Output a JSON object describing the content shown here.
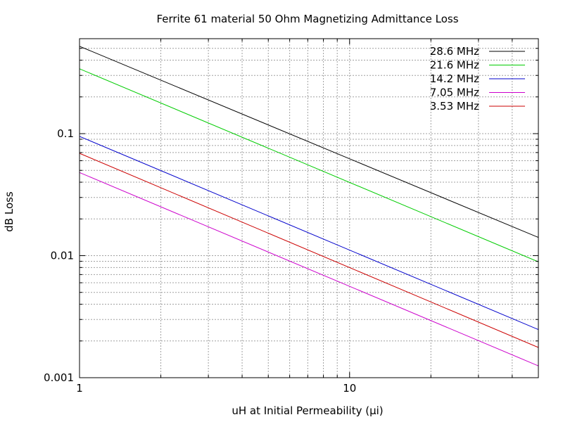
{
  "chart_data": {
    "type": "line",
    "title": "Ferrite 61 material 50 Ohm Magnetizing Admittance  Loss",
    "xlabel": "uH at Initial Permeability (µi)",
    "ylabel": "dB Loss",
    "x_scale": "log",
    "y_scale": "log",
    "xlim": [
      1,
      50
    ],
    "ylim": [
      0.001,
      0.6
    ],
    "x_ticks": [
      {
        "value": 1,
        "label": "1"
      },
      {
        "value": 10,
        "label": "10"
      }
    ],
    "y_ticks": [
      {
        "value": 0.001,
        "label": "0.001"
      },
      {
        "value": 0.01,
        "label": "0.01"
      },
      {
        "value": 0.1,
        "label": "0.1"
      }
    ],
    "grid": true,
    "legend_position": "top-right",
    "series": [
      {
        "name": "28.6 MHz",
        "color": "#000000",
        "x": [
          1,
          50
        ],
        "y": [
          0.52,
          0.0141
        ]
      },
      {
        "name": "21.6 MHz",
        "color": "#00cc00",
        "x": [
          1,
          50
        ],
        "y": [
          0.34,
          0.0089
        ]
      },
      {
        "name": "14.2 MHz",
        "color": "#0000cc",
        "x": [
          1,
          50
        ],
        "y": [
          0.095,
          0.00248
        ]
      },
      {
        "name": "7.05 MHz",
        "color": "#cc00cc",
        "x": [
          1,
          50
        ],
        "y": [
          0.048,
          0.00125
        ]
      },
      {
        "name": "3.53 MHz",
        "color": "#cc0000",
        "x": [
          1,
          50
        ],
        "y": [
          0.069,
          0.00177
        ]
      }
    ]
  }
}
